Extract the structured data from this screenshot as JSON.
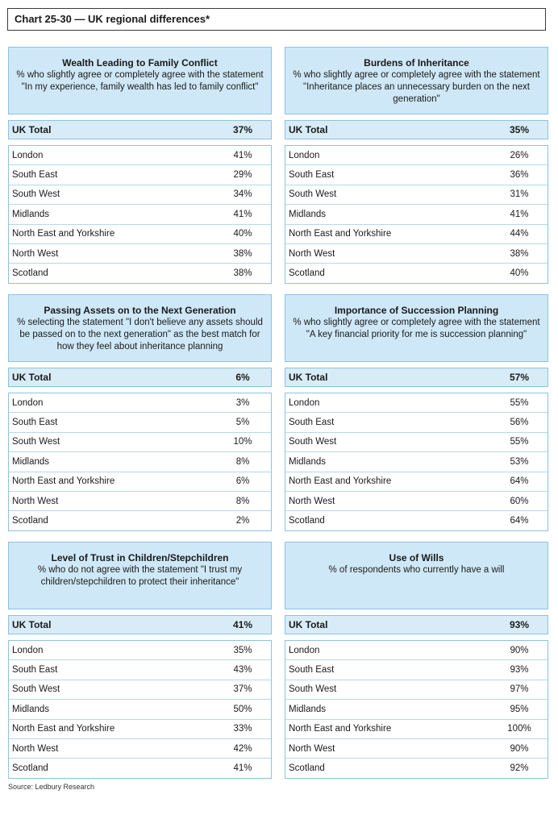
{
  "title": "Chart 25-30 — UK regional differences*",
  "source": "Source: Ledbury Research",
  "panels": [
    {
      "heading": "Wealth Leading to Family Conflict",
      "subtitle": "% who slightly agree or completely agree with the statement \"In my experience, family wealth has led to family conflict\"",
      "total_label": "UK Total",
      "total_value": "37%",
      "rows": [
        {
          "region": "London",
          "value": "41%"
        },
        {
          "region": "South East",
          "value": "29%"
        },
        {
          "region": "South West",
          "value": "34%"
        },
        {
          "region": "Midlands",
          "value": "41%"
        },
        {
          "region": "North East and Yorkshire",
          "value": "40%"
        },
        {
          "region": "North West",
          "value": "38%"
        },
        {
          "region": "Scotland",
          "value": "38%"
        }
      ]
    },
    {
      "heading": "Burdens of Inheritance",
      "subtitle": "% who slightly agree or completely agree with the statement \"Inheritance places an unnecessary burden on the next generation\"",
      "total_label": "UK Total",
      "total_value": "35%",
      "rows": [
        {
          "region": "London",
          "value": "26%"
        },
        {
          "region": "South East",
          "value": "36%"
        },
        {
          "region": "South West",
          "value": "31%"
        },
        {
          "region": "Midlands",
          "value": "41%"
        },
        {
          "region": "North East and Yorkshire",
          "value": "44%"
        },
        {
          "region": "North West",
          "value": "38%"
        },
        {
          "region": "Scotland",
          "value": "40%"
        }
      ]
    },
    {
      "heading": "Passing Assets on to the Next Generation",
      "subtitle": "% selecting the statement \"I don't believe any assets should be passed on to the next generation\" as the best match for how they feel about inheritance planning",
      "total_label": "UK Total",
      "total_value": "6%",
      "rows": [
        {
          "region": "London",
          "value": "3%"
        },
        {
          "region": "South East",
          "value": "5%"
        },
        {
          "region": "South West",
          "value": "10%"
        },
        {
          "region": "Midlands",
          "value": "8%"
        },
        {
          "region": "North East and Yorkshire",
          "value": "6%"
        },
        {
          "region": "North West",
          "value": "8%"
        },
        {
          "region": "Scotland",
          "value": "2%"
        }
      ]
    },
    {
      "heading": "Importance of Succession Planning",
      "subtitle": "% who slightly agree or completely agree with the statement \"A key financial priority for me is succession planning\"",
      "total_label": "UK Total",
      "total_value": "57%",
      "rows": [
        {
          "region": "London",
          "value": "55%"
        },
        {
          "region": "South East",
          "value": "56%"
        },
        {
          "region": "South West",
          "value": "55%"
        },
        {
          "region": "Midlands",
          "value": "53%"
        },
        {
          "region": "North East and Yorkshire",
          "value": "64%"
        },
        {
          "region": "North West",
          "value": "60%"
        },
        {
          "region": "Scotland",
          "value": "64%"
        }
      ]
    },
    {
      "heading": "Level of Trust in Children/Stepchildren",
      "subtitle": "% who do not agree with the statement \"I trust my children/stepchildren to protect their inheritance\"",
      "total_label": "UK Total",
      "total_value": "41%",
      "rows": [
        {
          "region": "London",
          "value": "35%"
        },
        {
          "region": "South East",
          "value": "43%"
        },
        {
          "region": "South West",
          "value": "37%"
        },
        {
          "region": "Midlands",
          "value": "50%"
        },
        {
          "region": "North East and Yorkshire",
          "value": "33%"
        },
        {
          "region": "North West",
          "value": "42%"
        },
        {
          "region": "Scotland",
          "value": "41%"
        }
      ]
    },
    {
      "heading": "Use of Wills",
      "subtitle": "% of respondents who currently have a will",
      "total_label": "UK Total",
      "total_value": "93%",
      "rows": [
        {
          "region": "London",
          "value": "90%"
        },
        {
          "region": "South East",
          "value": "93%"
        },
        {
          "region": "South West",
          "value": "97%"
        },
        {
          "region": "Midlands",
          "value": "95%"
        },
        {
          "region": "North East and Yorkshire",
          "value": "100%"
        },
        {
          "region": "North West",
          "value": "90%"
        },
        {
          "region": "Scotland",
          "value": "92%"
        }
      ]
    }
  ]
}
